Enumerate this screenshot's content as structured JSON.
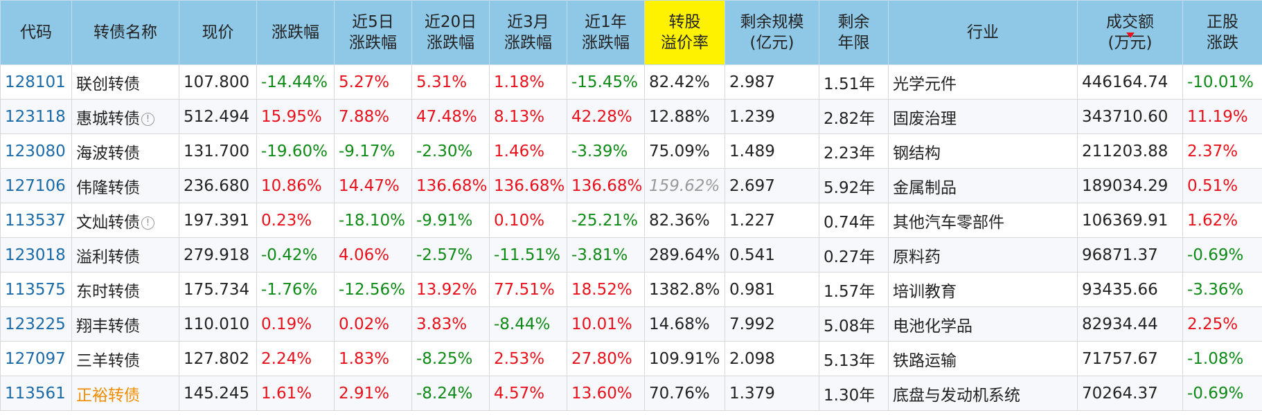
{
  "table": {
    "headers": {
      "code": "代码",
      "name": "转债名称",
      "price": "现价",
      "change": "涨跌幅",
      "change_5d_l1": "近5日",
      "change_5d_l2": "涨跌幅",
      "change_20d_l1": "近20日",
      "change_20d_l2": "涨跌幅",
      "change_3m_l1": "近3月",
      "change_3m_l2": "涨跌幅",
      "change_1y_l1": "近1年",
      "change_1y_l2": "涨跌幅",
      "premium_l1": "转股",
      "premium_l2": "溢价率",
      "scale_l1": "剩余规模",
      "scale_l2": "(亿元)",
      "years_l1": "剩余",
      "years_l2": "年限",
      "industry": "行业",
      "turnover_l1": "成交额",
      "turnover_l2": "(万元)",
      "stock_change_l1": "正股",
      "stock_change_l2": "涨跌"
    },
    "rows": [
      {
        "code": "128101",
        "name": "联创转债",
        "info": "",
        "price": "107.800",
        "change": "-14.44%",
        "change_5d": "5.27%",
        "change_20d": "5.31%",
        "change_3m": "1.18%",
        "change_1y": "-15.45%",
        "premium": "82.42%",
        "scale": "2.987",
        "years": "1.51年",
        "industry": "光学元件",
        "turnover": "446164.74",
        "stock_change": "-10.01%"
      },
      {
        "code": "123118",
        "name": "惠城转债",
        "info": "!",
        "price": "512.494",
        "change": "15.95%",
        "change_5d": "7.88%",
        "change_20d": "47.48%",
        "change_3m": "8.13%",
        "change_1y": "42.28%",
        "premium": "12.88%",
        "scale": "1.239",
        "years": "2.82年",
        "industry": "固废治理",
        "turnover": "343710.60",
        "stock_change": "11.19%"
      },
      {
        "code": "123080",
        "name": "海波转债",
        "info": "",
        "price": "131.700",
        "change": "-19.60%",
        "change_5d": "-9.17%",
        "change_20d": "-2.30%",
        "change_3m": "1.46%",
        "change_1y": "-3.39%",
        "premium": "75.09%",
        "scale": "1.489",
        "years": "2.23年",
        "industry": "钢结构",
        "turnover": "211203.88",
        "stock_change": "2.37%"
      },
      {
        "code": "127106",
        "name": "伟隆转债",
        "info": "",
        "price": "236.680",
        "change": "10.86%",
        "change_5d": "14.47%",
        "change_20d": "136.68%",
        "change_3m": "136.68%",
        "change_1y": "136.68%",
        "premium": "159.62%",
        "scale": "2.697",
        "years": "5.92年",
        "industry": "金属制品",
        "turnover": "189034.29",
        "stock_change": "0.51%"
      },
      {
        "code": "113537",
        "name": "文灿转债",
        "info": "!",
        "price": "197.391",
        "change": "0.23%",
        "change_5d": "-18.10%",
        "change_20d": "-9.91%",
        "change_3m": "0.10%",
        "change_1y": "-25.21%",
        "premium": "82.36%",
        "scale": "1.227",
        "years": "0.74年",
        "industry": "其他汽车零部件",
        "turnover": "106369.91",
        "stock_change": "1.62%"
      },
      {
        "code": "123018",
        "name": "溢利转债",
        "info": "",
        "price": "279.918",
        "change": "-0.42%",
        "change_5d": "4.06%",
        "change_20d": "-2.57%",
        "change_3m": "-11.51%",
        "change_1y": "-3.81%",
        "premium": "289.64%",
        "scale": "0.541",
        "years": "0.27年",
        "industry": "原料药",
        "turnover": "96871.37",
        "stock_change": "-0.69%"
      },
      {
        "code": "113575",
        "name": "东时转债",
        "info": "",
        "price": "175.734",
        "change": "-1.76%",
        "change_5d": "-12.56%",
        "change_20d": "13.92%",
        "change_3m": "77.51%",
        "change_1y": "18.52%",
        "premium": "1382.8%",
        "scale": "0.981",
        "years": "1.57年",
        "industry": "培训教育",
        "turnover": "93435.66",
        "stock_change": "-3.36%"
      },
      {
        "code": "123225",
        "name": "翔丰转债",
        "info": "",
        "price": "110.010",
        "change": "0.19%",
        "change_5d": "0.02%",
        "change_20d": "3.83%",
        "change_3m": "-8.44%",
        "change_1y": "10.01%",
        "premium": "14.68%",
        "scale": "7.992",
        "years": "5.08年",
        "industry": "电池化学品",
        "turnover": "82934.44",
        "stock_change": "2.25%"
      },
      {
        "code": "127097",
        "name": "三羊转债",
        "info": "",
        "price": "127.802",
        "change": "2.24%",
        "change_5d": "1.83%",
        "change_20d": "-8.25%",
        "change_3m": "2.53%",
        "change_1y": "27.80%",
        "premium": "109.91%",
        "scale": "2.098",
        "years": "5.13年",
        "industry": "铁路运输",
        "turnover": "71757.67",
        "stock_change": "-1.08%"
      },
      {
        "code": "113561",
        "name": "正裕转债",
        "info": "",
        "price": "145.245",
        "change": "1.61%",
        "change_5d": "2.91%",
        "change_20d": "-8.24%",
        "change_3m": "4.57%",
        "change_1y": "13.60%",
        "premium": "70.76%",
        "scale": "1.379",
        "years": "1.30年",
        "industry": "底盘与发动机系统",
        "turnover": "70264.37",
        "stock_change": "-0.69%"
      }
    ]
  },
  "colors": {
    "header_bg": "#8fc8e6",
    "highlight_header": "#fff200",
    "up": "#e8111b",
    "down": "#0e8a16",
    "link": "#1a6aa8",
    "special_name": "#f08c00",
    "muted_italic": "#9a9a9a"
  },
  "icons": {
    "info": "info-circle-icon",
    "sort_up": "sort-asc-icon",
    "sort_down": "sort-desc-icon"
  }
}
